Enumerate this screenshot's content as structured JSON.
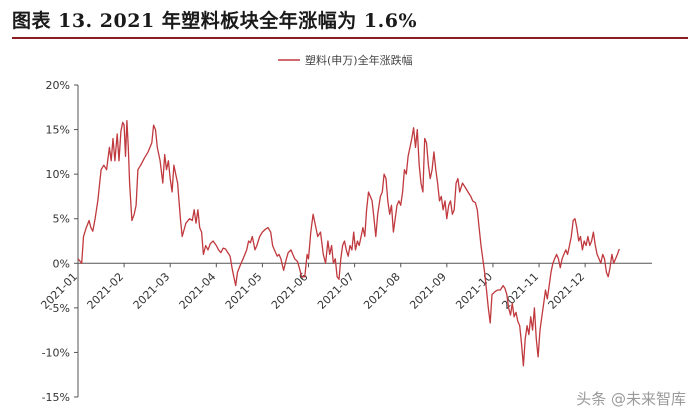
{
  "header": {
    "title": "图表 13. 2021 年塑料板块全年涨幅为 1.6%"
  },
  "watermark": "头条 @未来智库",
  "chart_data": {
    "type": "line",
    "legend": "塑料(申万)全年涨跌幅",
    "legend_position": "top-center",
    "grid": false,
    "ylim": [
      -15,
      20
    ],
    "y_ticks": [
      20,
      15,
      10,
      5,
      0,
      -5,
      -10,
      -15
    ],
    "y_tick_labels": [
      "20%",
      "15%",
      "10%",
      "5%",
      "0%",
      "-5%",
      "-10%",
      "-15%"
    ],
    "x_ticks": [
      {
        "label": "2021-01",
        "x": 0
      },
      {
        "label": "2021-02",
        "x": 1
      },
      {
        "label": "2021-03",
        "x": 2
      },
      {
        "label": "2021-04",
        "x": 3
      },
      {
        "label": "2021-05",
        "x": 4
      },
      {
        "label": "2021-06",
        "x": 5
      },
      {
        "label": "2021-07",
        "x": 6
      },
      {
        "label": "2021-08",
        "x": 7
      },
      {
        "label": "2021-09",
        "x": 8
      },
      {
        "label": "2021-10",
        "x": 9
      },
      {
        "label": "2021-11",
        "x": 10
      },
      {
        "label": "2021-12",
        "x": 11
      }
    ],
    "xlim": [
      0,
      12.45
    ],
    "series": [
      {
        "name": "塑料(申万)全年涨跌幅",
        "color": "#c0393e",
        "points": [
          [
            0.0,
            0.5
          ],
          [
            0.05,
            0.2
          ],
          [
            0.08,
            0.0
          ],
          [
            0.12,
            3.0
          ],
          [
            0.18,
            4.0
          ],
          [
            0.24,
            4.8
          ],
          [
            0.28,
            4.0
          ],
          [
            0.32,
            3.6
          ],
          [
            0.37,
            5.0
          ],
          [
            0.43,
            7.0
          ],
          [
            0.5,
            10.5
          ],
          [
            0.56,
            11.0
          ],
          [
            0.62,
            10.5
          ],
          [
            0.68,
            13.0
          ],
          [
            0.72,
            11.5
          ],
          [
            0.76,
            14.0
          ],
          [
            0.8,
            11.5
          ],
          [
            0.85,
            14.5
          ],
          [
            0.89,
            11.5
          ],
          [
            0.93,
            14.8
          ],
          [
            0.97,
            15.8
          ],
          [
            1.0,
            15.5
          ],
          [
            1.03,
            12.0
          ],
          [
            1.06,
            16.0
          ],
          [
            1.09,
            13.0
          ],
          [
            1.12,
            9.0
          ],
          [
            1.17,
            4.8
          ],
          [
            1.22,
            5.5
          ],
          [
            1.26,
            6.5
          ],
          [
            1.3,
            10.5
          ],
          [
            1.36,
            11.0
          ],
          [
            1.44,
            11.8
          ],
          [
            1.52,
            12.5
          ],
          [
            1.6,
            13.5
          ],
          [
            1.64,
            15.5
          ],
          [
            1.68,
            15.0
          ],
          [
            1.72,
            13.0
          ],
          [
            1.78,
            11.5
          ],
          [
            1.84,
            9.0
          ],
          [
            1.88,
            12.2
          ],
          [
            1.92,
            10.5
          ],
          [
            1.96,
            11.5
          ],
          [
            2.0,
            9.5
          ],
          [
            2.04,
            8.0
          ],
          [
            2.08,
            11.0
          ],
          [
            2.12,
            10.0
          ],
          [
            2.16,
            9.0
          ],
          [
            2.22,
            5.0
          ],
          [
            2.26,
            3.0
          ],
          [
            2.34,
            4.5
          ],
          [
            2.42,
            5.0
          ],
          [
            2.48,
            4.8
          ],
          [
            2.52,
            6.0
          ],
          [
            2.56,
            4.5
          ],
          [
            2.6,
            6.0
          ],
          [
            2.64,
            4.0
          ],
          [
            2.68,
            3.5
          ],
          [
            2.72,
            1.0
          ],
          [
            2.77,
            2.0
          ],
          [
            2.82,
            1.5
          ],
          [
            2.87,
            2.2
          ],
          [
            2.93,
            2.5
          ],
          [
            3.0,
            2.0
          ],
          [
            3.05,
            1.5
          ],
          [
            3.1,
            1.2
          ],
          [
            3.15,
            1.7
          ],
          [
            3.2,
            1.6
          ],
          [
            3.25,
            1.2
          ],
          [
            3.3,
            0.8
          ],
          [
            3.34,
            -0.5
          ],
          [
            3.38,
            -1.5
          ],
          [
            3.42,
            -2.5
          ],
          [
            3.46,
            -1.0
          ],
          [
            3.52,
            -0.2
          ],
          [
            3.58,
            0.5
          ],
          [
            3.62,
            1.0
          ],
          [
            3.66,
            1.5
          ],
          [
            3.7,
            2.5
          ],
          [
            3.74,
            2.3
          ],
          [
            3.78,
            3.0
          ],
          [
            3.84,
            1.5
          ],
          [
            3.88,
            2.0
          ],
          [
            3.94,
            3.0
          ],
          [
            4.0,
            3.5
          ],
          [
            4.06,
            3.8
          ],
          [
            4.12,
            4.0
          ],
          [
            4.18,
            3.5
          ],
          [
            4.22,
            2.0
          ],
          [
            4.26,
            1.5
          ],
          [
            4.32,
            0.8
          ],
          [
            4.36,
            1.0
          ],
          [
            4.4,
            0.5
          ],
          [
            4.46,
            -0.8
          ],
          [
            4.52,
            0.5
          ],
          [
            4.56,
            1.2
          ],
          [
            4.62,
            1.5
          ],
          [
            4.66,
            1.0
          ],
          [
            4.7,
            0.5
          ],
          [
            4.76,
            0.2
          ],
          [
            4.8,
            -0.5
          ],
          [
            4.85,
            -1.5
          ],
          [
            4.92,
            -1.5
          ],
          [
            4.97,
            1.0
          ],
          [
            5.0,
            0.5
          ],
          [
            5.05,
            3.5
          ],
          [
            5.1,
            5.5
          ],
          [
            5.16,
            4.0
          ],
          [
            5.2,
            3.0
          ],
          [
            5.26,
            3.5
          ],
          [
            5.32,
            1.0
          ],
          [
            5.37,
            0.0
          ],
          [
            5.42,
            2.5
          ],
          [
            5.46,
            1.0
          ],
          [
            5.5,
            2.0
          ],
          [
            5.54,
            0.0
          ],
          [
            5.58,
            0.5
          ],
          [
            5.62,
            -1.5
          ],
          [
            5.66,
            -1.8
          ],
          [
            5.7,
            0.5
          ],
          [
            5.74,
            2.0
          ],
          [
            5.78,
            2.5
          ],
          [
            5.82,
            1.5
          ],
          [
            5.86,
            0.8
          ],
          [
            5.9,
            2.0
          ],
          [
            5.94,
            1.5
          ],
          [
            5.98,
            3.5
          ],
          [
            6.02,
            1.5
          ],
          [
            6.06,
            2.5
          ],
          [
            6.1,
            2.0
          ],
          [
            6.14,
            3.0
          ],
          [
            6.18,
            4.0
          ],
          [
            6.22,
            3.0
          ],
          [
            6.26,
            6.0
          ],
          [
            6.3,
            8.0
          ],
          [
            6.34,
            7.5
          ],
          [
            6.38,
            7.0
          ],
          [
            6.42,
            5.0
          ],
          [
            6.46,
            3.0
          ],
          [
            6.5,
            5.5
          ],
          [
            6.56,
            7.5
          ],
          [
            6.6,
            8.0
          ],
          [
            6.64,
            10.0
          ],
          [
            6.68,
            9.5
          ],
          [
            6.72,
            7.0
          ],
          [
            6.76,
            5.5
          ],
          [
            6.8,
            6.5
          ],
          [
            6.84,
            3.5
          ],
          [
            6.88,
            5.0
          ],
          [
            6.92,
            6.5
          ],
          [
            6.96,
            7.0
          ],
          [
            7.0,
            6.5
          ],
          [
            7.04,
            8.0
          ],
          [
            7.08,
            10.5
          ],
          [
            7.12,
            10.0
          ],
          [
            7.16,
            12.0
          ],
          [
            7.2,
            13.0
          ],
          [
            7.24,
            14.0
          ],
          [
            7.28,
            15.2
          ],
          [
            7.32,
            13.0
          ],
          [
            7.36,
            15.0
          ],
          [
            7.4,
            11.0
          ],
          [
            7.44,
            9.0
          ],
          [
            7.48,
            8.0
          ],
          [
            7.52,
            14.0
          ],
          [
            7.56,
            13.5
          ],
          [
            7.6,
            11.0
          ],
          [
            7.64,
            9.5
          ],
          [
            7.68,
            10.5
          ],
          [
            7.72,
            12.5
          ],
          [
            7.76,
            10.5
          ],
          [
            7.8,
            9.0
          ],
          [
            7.84,
            7.0
          ],
          [
            7.88,
            7.5
          ],
          [
            7.92,
            6.0
          ],
          [
            7.96,
            7.0
          ],
          [
            8.0,
            5.0
          ],
          [
            8.04,
            6.5
          ],
          [
            8.08,
            7.0
          ],
          [
            8.12,
            5.5
          ],
          [
            8.16,
            6.0
          ],
          [
            8.2,
            9.0
          ],
          [
            8.24,
            9.5
          ],
          [
            8.28,
            8.0
          ],
          [
            8.34,
            9.0
          ],
          [
            8.4,
            8.5
          ],
          [
            8.46,
            8.0
          ],
          [
            8.52,
            7.5
          ],
          [
            8.56,
            7.0
          ],
          [
            8.62,
            6.8
          ],
          [
            8.66,
            6.0
          ],
          [
            8.7,
            4.0
          ],
          [
            8.74,
            2.0
          ],
          [
            8.78,
            0.5
          ],
          [
            8.82,
            -1.0
          ],
          [
            8.86,
            -3.0
          ],
          [
            8.9,
            -5.0
          ],
          [
            8.94,
            -6.7
          ],
          [
            8.98,
            -3.5
          ],
          [
            9.04,
            -3.2
          ],
          [
            9.1,
            -3.0
          ],
          [
            9.16,
            -3.0
          ],
          [
            9.22,
            -2.5
          ],
          [
            9.26,
            -2.8
          ],
          [
            9.3,
            -3.5
          ],
          [
            9.34,
            -5.0
          ],
          [
            9.38,
            -5.8
          ],
          [
            9.42,
            -4.5
          ],
          [
            9.46,
            -6.0
          ],
          [
            9.5,
            -5.5
          ],
          [
            9.54,
            -6.5
          ],
          [
            9.58,
            -7.0
          ],
          [
            9.62,
            -9.0
          ],
          [
            9.66,
            -11.5
          ],
          [
            9.7,
            -8.5
          ],
          [
            9.74,
            -7.0
          ],
          [
            9.78,
            -8.0
          ],
          [
            9.82,
            -6.0
          ],
          [
            9.86,
            -7.5
          ],
          [
            9.9,
            -5.0
          ],
          [
            9.94,
            -8.5
          ],
          [
            9.98,
            -10.5
          ],
          [
            10.02,
            -7.5
          ],
          [
            10.06,
            -6.0
          ],
          [
            10.1,
            -4.5
          ],
          [
            10.14,
            -3.0
          ],
          [
            10.18,
            -4.0
          ],
          [
            10.22,
            -2.5
          ],
          [
            10.26,
            -1.0
          ],
          [
            10.3,
            0.0
          ],
          [
            10.34,
            0.5
          ],
          [
            10.38,
            1.0
          ],
          [
            10.42,
            0.5
          ],
          [
            10.46,
            -0.5
          ],
          [
            10.5,
            0.5
          ],
          [
            10.54,
            1.0
          ],
          [
            10.58,
            1.5
          ],
          [
            10.62,
            1.0
          ],
          [
            10.66,
            2.0
          ],
          [
            10.7,
            3.0
          ],
          [
            10.74,
            4.8
          ],
          [
            10.78,
            5.0
          ],
          [
            10.82,
            4.0
          ],
          [
            10.86,
            2.5
          ],
          [
            10.9,
            3.0
          ],
          [
            10.94,
            1.5
          ],
          [
            10.98,
            2.5
          ],
          [
            11.02,
            2.0
          ],
          [
            11.06,
            3.0
          ],
          [
            11.1,
            2.0
          ],
          [
            11.14,
            2.5
          ],
          [
            11.18,
            3.5
          ],
          [
            11.22,
            2.0
          ],
          [
            11.26,
            1.0
          ],
          [
            11.3,
            0.5
          ],
          [
            11.34,
            0.0
          ],
          [
            11.38,
            1.0
          ],
          [
            11.42,
            0.5
          ],
          [
            11.46,
            -1.0
          ],
          [
            11.5,
            -1.5
          ],
          [
            11.54,
            -0.5
          ],
          [
            11.58,
            1.0
          ],
          [
            11.62,
            0.0
          ],
          [
            11.66,
            0.5
          ],
          [
            11.7,
            1.0
          ],
          [
            11.74,
            1.6
          ]
        ]
      }
    ]
  }
}
